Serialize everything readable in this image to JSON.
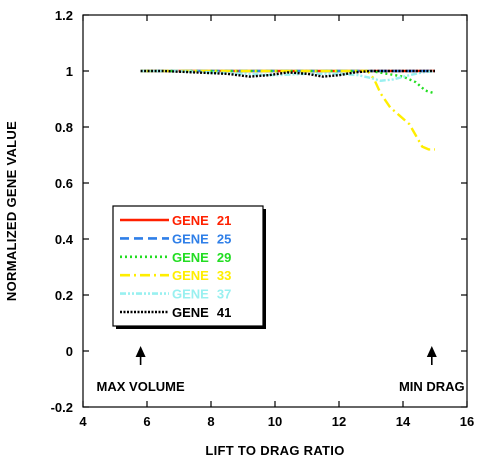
{
  "chart_data": {
    "type": "line",
    "xlabel": "LIFT TO DRAG RATIO",
    "ylabel": "NORMALIZED GENE VALUE",
    "xlim": [
      4,
      16
    ],
    "ylim": [
      -0.2,
      1.2
    ],
    "x_ticks": [
      4,
      6,
      8,
      10,
      12,
      14,
      16
    ],
    "y_ticks": [
      -0.2,
      0,
      0.2,
      0.4,
      0.6,
      0.8,
      1,
      1.2
    ],
    "x_tick_labels": [
      "4",
      "6",
      "8",
      "10",
      "12",
      "14",
      "16"
    ],
    "y_tick_labels": [
      "-0.2",
      "0",
      "0.2",
      "0.4",
      "0.6",
      "0.8",
      "1",
      "1.2"
    ],
    "grid": false,
    "legend_position": "center-left",
    "legend": {
      "prefix": "GENE",
      "entries": [
        {
          "number": "21",
          "color": "#ff2000",
          "dash": ""
        },
        {
          "number": "25",
          "color": "#2f7fe8",
          "dash": "9,5"
        },
        {
          "number": "29",
          "color": "#22dd22",
          "dash": "2,3"
        },
        {
          "number": "33",
          "color": "#ffee00",
          "dash": "10,4,2,4"
        },
        {
          "number": "37",
          "color": "#99f0f0",
          "dash": "6,2,2,2,2,2"
        },
        {
          "number": "41",
          "color": "#000000",
          "dash": "2,1.5"
        }
      ]
    },
    "series": [
      {
        "number": "21",
        "color": "#ff2000",
        "dash": "",
        "points": [
          [
            5.8,
            1.0
          ],
          [
            7,
            1.0
          ],
          [
            8,
            1.0
          ],
          [
            9,
            1.0
          ],
          [
            10,
            1.0
          ],
          [
            11,
            1.0
          ],
          [
            12,
            1.0
          ],
          [
            13,
            1.0
          ],
          [
            14,
            1.0
          ],
          [
            15,
            1.0
          ]
        ]
      },
      {
        "number": "25",
        "color": "#2f7fe8",
        "dash": "9,5",
        "points": [
          [
            5.8,
            1.0
          ],
          [
            7,
            1.0
          ],
          [
            8,
            1.0
          ],
          [
            9,
            1.0
          ],
          [
            10,
            1.0
          ],
          [
            11,
            1.0
          ],
          [
            12,
            1.0
          ],
          [
            13,
            1.0
          ],
          [
            14,
            1.0
          ],
          [
            15,
            1.0
          ]
        ]
      },
      {
        "number": "29",
        "color": "#22dd22",
        "dash": "2,3",
        "points": [
          [
            5.8,
            1.0
          ],
          [
            7,
            1.0
          ],
          [
            8,
            1.0
          ],
          [
            9,
            1.0
          ],
          [
            10,
            1.0
          ],
          [
            11,
            1.0
          ],
          [
            12,
            1.0
          ],
          [
            13,
            1.0
          ],
          [
            13.5,
            0.99
          ],
          [
            14,
            0.98
          ],
          [
            14.4,
            0.96
          ],
          [
            14.7,
            0.93
          ],
          [
            15,
            0.92
          ]
        ]
      },
      {
        "number": "33",
        "color": "#ffee00",
        "dash": "10,4,2,4",
        "points": [
          [
            5.8,
            1.0
          ],
          [
            8,
            1.0
          ],
          [
            10,
            1.0
          ],
          [
            12,
            1.0
          ],
          [
            12.9,
            1.0
          ],
          [
            13.1,
            0.97
          ],
          [
            13.3,
            0.92
          ],
          [
            13.6,
            0.87
          ],
          [
            13.9,
            0.84
          ],
          [
            14.2,
            0.81
          ],
          [
            14.4,
            0.77
          ],
          [
            14.6,
            0.73
          ],
          [
            14.8,
            0.72
          ],
          [
            15,
            0.72
          ]
        ]
      },
      {
        "number": "37",
        "color": "#99f0f0",
        "dash": "6,2,2,2,2,2",
        "points": [
          [
            5.8,
            1.0
          ],
          [
            7,
            1.0
          ],
          [
            8,
            0.995
          ],
          [
            9,
            0.99
          ],
          [
            10,
            0.985
          ],
          [
            11,
            0.99
          ],
          [
            12,
            0.99
          ],
          [
            12.6,
            0.985
          ],
          [
            13,
            0.975
          ],
          [
            13.3,
            0.965
          ],
          [
            13.7,
            0.97
          ],
          [
            14.2,
            0.985
          ],
          [
            14.6,
            0.995
          ],
          [
            15,
            1.0
          ]
        ]
      },
      {
        "number": "41",
        "color": "#000000",
        "dash": "2,1.5",
        "points": [
          [
            5.8,
            1.0
          ],
          [
            6.5,
            1.0
          ],
          [
            7.5,
            0.995
          ],
          [
            8.5,
            0.99
          ],
          [
            9.2,
            0.98
          ],
          [
            9.8,
            0.985
          ],
          [
            10.4,
            0.995
          ],
          [
            11,
            0.99
          ],
          [
            11.5,
            0.98
          ],
          [
            12,
            0.985
          ],
          [
            12.5,
            0.995
          ],
          [
            13,
            1.0
          ],
          [
            14,
            1.0
          ],
          [
            15,
            1.0
          ]
        ]
      }
    ],
    "annotations": [
      {
        "text": "MAX  VOLUME",
        "x": 5.8,
        "y": 0
      },
      {
        "text": "MIN  DRAG",
        "x": 14.9,
        "y": 0
      }
    ]
  }
}
